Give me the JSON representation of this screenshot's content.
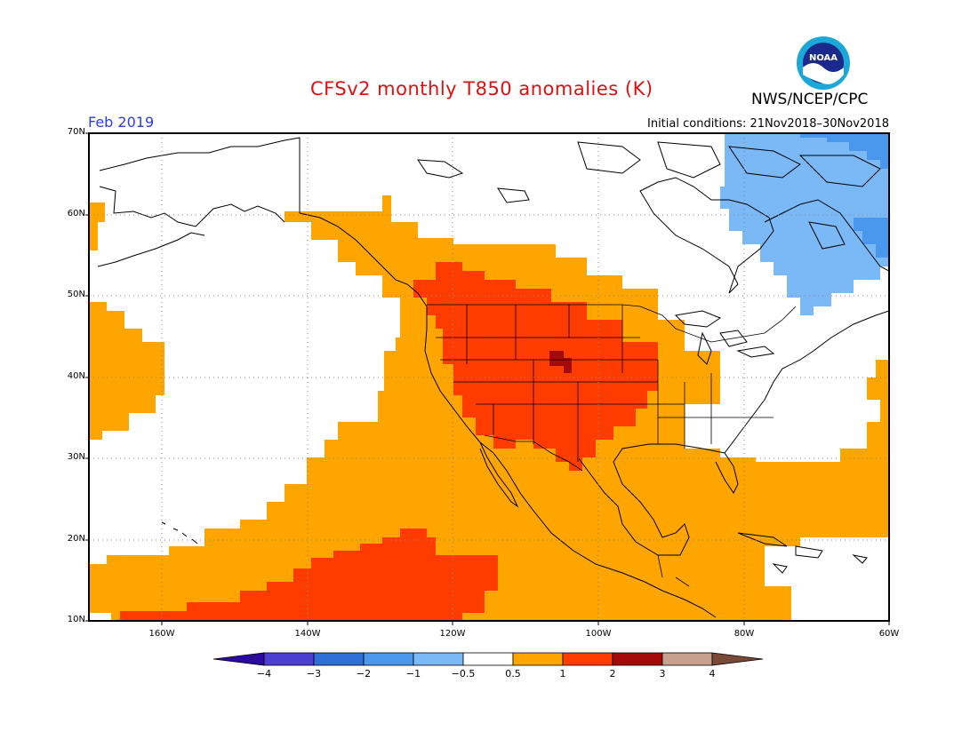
{
  "title": "CFSv2 monthly T850 anomalies (K)",
  "agency": "NWS/NCEP/CPC",
  "logo_text": "NOAA",
  "month": "Feb 2019",
  "initial_conditions": "Initial conditions: 21Nov2018–30Nov2018",
  "lat_labels": [
    "70N",
    "60N",
    "50N",
    "40N",
    "30N",
    "20N",
    "10N"
  ],
  "lon_labels": [
    "160W",
    "140W",
    "120W",
    "100W",
    "80W",
    "60W"
  ],
  "colorbar": {
    "labels": [
      "−4",
      "−3",
      "−2",
      "−1",
      "−0.5",
      "0.5",
      "1",
      "2",
      "3",
      "4"
    ],
    "colors": [
      "#2b0aa0",
      "#4a3fd0",
      "#2f6fd8",
      "#4a97ee",
      "#7ab8f6",
      "#ffffff",
      "#ffa500",
      "#ff3c00",
      "#a50a0a",
      "#c8a090",
      "#7a4a38"
    ]
  },
  "anomaly_colors": {
    "weak_warm": "#ffa500",
    "warm": "#ff3c00",
    "strong_warm": "#a50a0a",
    "weak_cold": "#7ab8f6",
    "cold": "#4a97ee"
  }
}
